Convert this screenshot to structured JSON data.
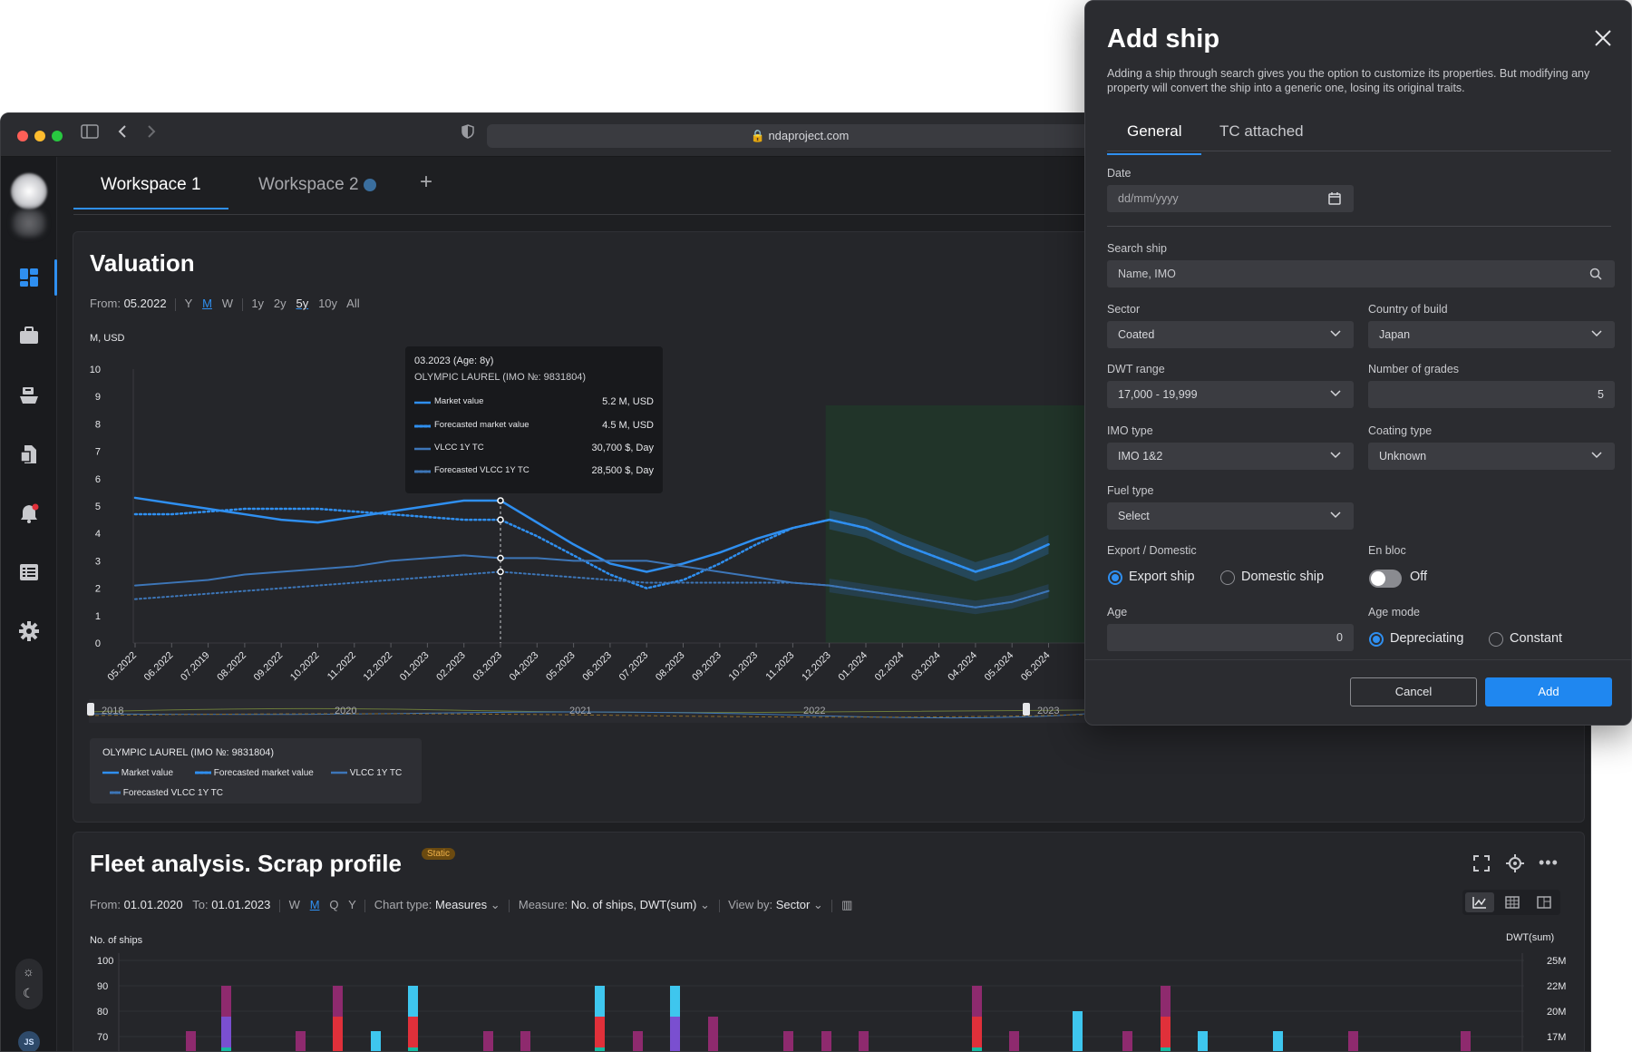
{
  "browser": {
    "url": "ndaproject.com"
  },
  "sidebar": {
    "user_initials": "JS"
  },
  "workspaces": {
    "tab1": "Workspace 1",
    "tab2": "Workspace 2",
    "add": "+"
  },
  "valuation": {
    "title": "Valuation",
    "from_label": "From:",
    "from_value": "05.2022",
    "periods": [
      "Y",
      "M",
      "W",
      "1y",
      "2y",
      "5y",
      "10y",
      "All"
    ],
    "unit": "M, USD",
    "timeline_years": [
      "2018",
      "2020",
      "2021",
      "2022",
      "2023"
    ],
    "tooltip": {
      "date": "03.2023 (Age: 8y)",
      "ship": "OLYMPIC LAUREL (IMO №: 9831804)",
      "rows": [
        {
          "label": "Market value",
          "value": "5.2 M, USD"
        },
        {
          "label": "Forecasted market value",
          "value": "4.5 M, USD"
        },
        {
          "label": "VLCC 1Y TC",
          "value": "30,700 $, Day"
        },
        {
          "label": "Forecasted VLCC 1Y TC",
          "value": "28,500 $, Day"
        }
      ]
    },
    "legend": {
      "ship": "OLYMPIC LAUREL (IMO №: 9831804)",
      "items": [
        "Market value",
        "Forecasted market value",
        "VLCC 1Y TC",
        "Forecasted VLCC 1Y TC"
      ]
    }
  },
  "chart_data": [
    {
      "type": "line",
      "title": "Valuation",
      "ylabel": "M, USD",
      "ylim": [
        0,
        10
      ],
      "yticks": [
        "10",
        "9",
        "8",
        "7",
        "6",
        "5",
        "4",
        "3",
        "2",
        "1",
        "0"
      ],
      "categories": [
        "05.2022",
        "06.2022",
        "07.2019",
        "08.2022",
        "09.2022",
        "10.2022",
        "11.2022",
        "12.2022",
        "01.2023",
        "02.2023",
        "03.2023",
        "04.2023",
        "05.2023",
        "06.2023",
        "07.2023",
        "08.2023",
        "09.2023",
        "10.2023",
        "11.2023",
        "12.2023",
        "01.2024",
        "02.2024",
        "03.2024",
        "04.2024",
        "05.2024",
        "06.2024"
      ],
      "series": [
        {
          "name": "Market value",
          "values": [
            5.3,
            5.1,
            4.9,
            4.7,
            4.5,
            4.4,
            4.6,
            4.8,
            5.0,
            5.2,
            5.2,
            4.4,
            3.6,
            2.9,
            2.6,
            2.9,
            3.3,
            3.8,
            4.2,
            4.5,
            4.2,
            3.6,
            3.1,
            2.6,
            3.0,
            3.6
          ]
        },
        {
          "name": "Forecasted market value",
          "values": [
            4.7,
            4.7,
            4.8,
            4.9,
            4.9,
            4.9,
            4.8,
            4.7,
            4.6,
            4.5,
            4.5,
            3.9,
            3.2,
            2.5,
            2.0,
            2.3,
            2.9,
            3.6,
            4.2,
            4.5,
            4.2,
            3.6,
            3.1,
            2.6,
            3.0,
            3.6
          ]
        },
        {
          "name": "VLCC 1Y TC",
          "values": [
            2.1,
            2.2,
            2.3,
            2.5,
            2.6,
            2.7,
            2.8,
            3.0,
            3.1,
            3.2,
            3.1,
            3.1,
            3.0,
            3.0,
            3.0,
            2.8,
            2.6,
            2.4,
            2.2,
            2.1,
            1.9,
            1.7,
            1.5,
            1.3,
            1.5,
            1.9
          ]
        },
        {
          "name": "Forecasted VLCC 1Y TC",
          "values": [
            1.6,
            1.7,
            1.8,
            1.9,
            2.0,
            2.1,
            2.2,
            2.3,
            2.4,
            2.5,
            2.6,
            2.5,
            2.4,
            2.3,
            2.2,
            2.2,
            2.2,
            2.2,
            2.2,
            2.1,
            1.9,
            1.7,
            1.5,
            1.3,
            1.5,
            1.9
          ]
        }
      ]
    },
    {
      "type": "bar",
      "title": "Fleet analysis. Scrap profile",
      "ylabel": "No. of ships",
      "ylabel_right": "DWT(sum)",
      "yticks": [
        "100",
        "90",
        "80",
        "70"
      ],
      "yticks_right": [
        "25M",
        "22M",
        "20M",
        "17M"
      ]
    }
  ],
  "fleet": {
    "title": "Fleet analysis. Scrap profile",
    "badge": "Static",
    "from_label": "From:",
    "from_value": "01.01.2020",
    "to_label": "To:",
    "to_value": "01.01.2023",
    "periods": [
      "W",
      "M",
      "Q",
      "Y"
    ],
    "chart_type_label": "Chart type:",
    "chart_type_value": "Measures",
    "measure_label": "Measure:",
    "measure_value": "No. of ships, DWT(sum)",
    "view_label": "View by:",
    "view_value": "Sector",
    "ylabel": "No. of ships",
    "ylabel_right": "DWT(sum)"
  },
  "modal": {
    "title": "Add ship",
    "description": "Adding a ship through search gives you the option to customize its properties. But modifying any property will convert the ship into a generic one, losing its original traits.",
    "tabs": [
      "General",
      "TC attached"
    ],
    "date": {
      "label": "Date",
      "placeholder": "dd/mm/yyyy"
    },
    "search": {
      "label": "Search ship",
      "placeholder": "Name, IMO"
    },
    "sector": {
      "label": "Sector",
      "value": "Coated"
    },
    "country": {
      "label": "Country of build",
      "value": "Japan"
    },
    "dwt": {
      "label": "DWT range",
      "value": "17,000 - 19,999"
    },
    "grades": {
      "label": "Number of grades",
      "value": "5"
    },
    "imo": {
      "label": "IMO type",
      "value": "IMO 1&2"
    },
    "coating": {
      "label": "Coating type",
      "value": "Unknown"
    },
    "fuel": {
      "label": "Fuel type",
      "value": "Select"
    },
    "export": {
      "label": "Export / Domestic",
      "opt1": "Export ship",
      "opt2": "Domestic ship"
    },
    "enbloc": {
      "label": "En bloc",
      "value": "Off"
    },
    "age": {
      "label": "Age",
      "value": "0"
    },
    "agemode": {
      "label": "Age mode",
      "opt1": "Depreciating",
      "opt2": "Constant"
    },
    "cancel": "Cancel",
    "add": "Add"
  },
  "colors": {
    "accent": "#2f8ff0",
    "line_dark": "#3d76b8",
    "magenta": "#8e2a6e",
    "red": "#e0303a",
    "cyan": "#3ec6ee",
    "purple": "#7a4fd0",
    "teal": "#18b9a0"
  }
}
